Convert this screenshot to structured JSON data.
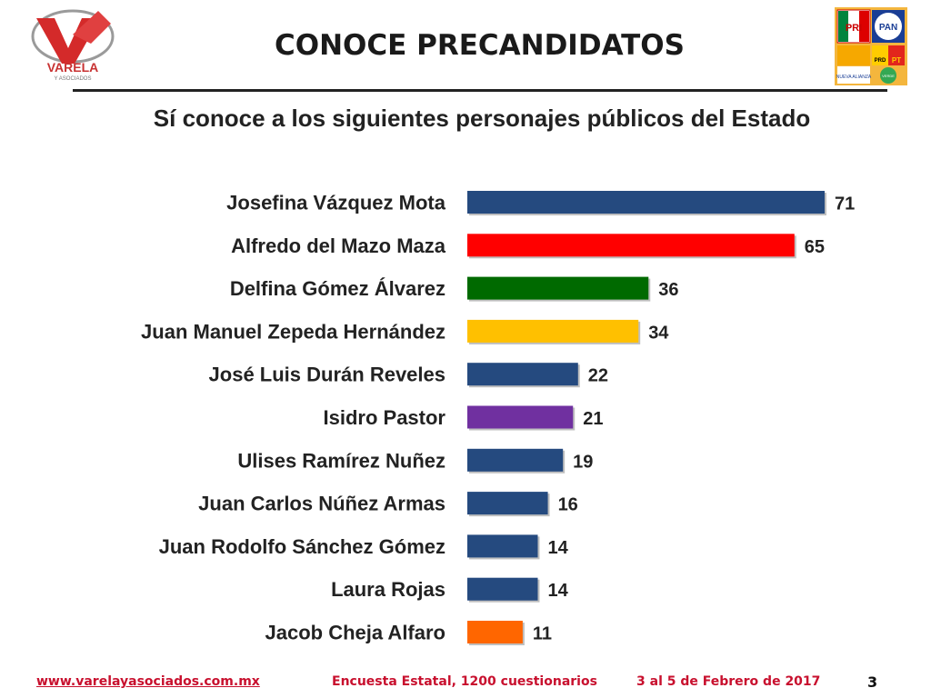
{
  "header": {
    "title": "CONOCE PRECANDIDATOS",
    "logo_main_text": "VARELA",
    "logo_sub_text": "Y ASOCIADOS",
    "party_logos": [
      "PRI",
      "PAN",
      "PRD",
      "PT",
      "NUEVA ALIANZA",
      "VERDE"
    ]
  },
  "colors": {
    "navy": "#254a7f",
    "red": "#ff0000",
    "green": "#006a00",
    "yellow": "#ffc000",
    "purple": "#7030a0",
    "orange": "#ff6600",
    "footer_red": "#c8102e"
  },
  "chart_data": {
    "type": "bar",
    "orientation": "horizontal",
    "title": "Sí conoce a los siguientes personajes públicos del Estado",
    "categories": [
      "Josefina Vázquez Mota",
      "Alfredo del Mazo Maza",
      "Delfina Gómez Álvarez",
      "Juan Manuel Zepeda Hernández",
      "José Luis Durán Reveles",
      "Isidro Pastor",
      "Ulises Ramírez Nuñez",
      "Juan Carlos Núñez Armas",
      "Juan Rodolfo Sánchez Gómez",
      "Laura Rojas",
      "Jacob Cheja Alfaro"
    ],
    "values": [
      71,
      65,
      36,
      34,
      22,
      21,
      19,
      16,
      14,
      14,
      11
    ],
    "bar_colors": [
      "#254a7f",
      "#ff0000",
      "#006a00",
      "#ffc000",
      "#254a7f",
      "#7030a0",
      "#254a7f",
      "#254a7f",
      "#254a7f",
      "#254a7f",
      "#ff6600"
    ],
    "xlim": [
      0,
      71
    ],
    "grid": false,
    "legend": "none",
    "data_labels": true
  },
  "footer": {
    "url": "www.varelayasociados.com.mx",
    "survey": "Encuesta Estatal, 1200 cuestionarios",
    "date": "3 al 5 de Febrero de 2017",
    "page": "3"
  }
}
